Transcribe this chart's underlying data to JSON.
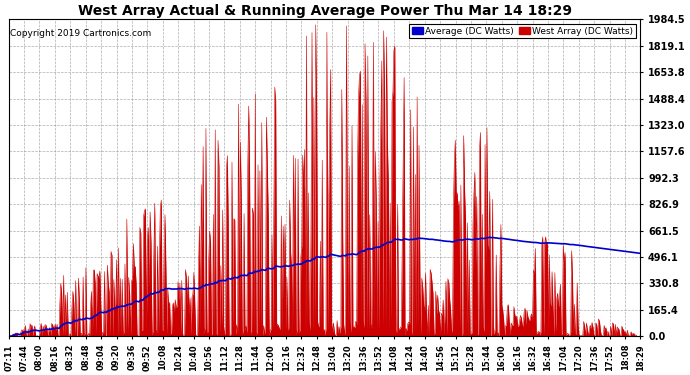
{
  "title": "West Array Actual & Running Average Power Thu Mar 14 18:29",
  "copyright": "Copyright 2019 Cartronics.com",
  "legend_avg": "Average (DC Watts)",
  "legend_west": "West Array (DC Watts)",
  "yticks": [
    0.0,
    165.4,
    330.8,
    496.1,
    661.5,
    826.9,
    992.3,
    1157.6,
    1323.0,
    1488.4,
    1653.8,
    1819.1,
    1984.5
  ],
  "ymax": 1984.5,
  "ymin": 0.0,
  "bg_color": "#ffffff",
  "grid_color": "#aaaaaa",
  "west_array_color": "#cc0000",
  "avg_color": "#0000cc",
  "xtick_labels": [
    "07:11",
    "07:44",
    "08:00",
    "08:16",
    "08:32",
    "08:48",
    "09:04",
    "09:20",
    "09:36",
    "09:52",
    "10:08",
    "10:24",
    "10:40",
    "10:56",
    "11:12",
    "11:28",
    "11:44",
    "12:00",
    "12:16",
    "12:32",
    "12:48",
    "13:04",
    "13:20",
    "13:36",
    "13:52",
    "14:08",
    "14:24",
    "14:40",
    "14:56",
    "15:12",
    "15:28",
    "15:44",
    "16:00",
    "16:16",
    "16:32",
    "16:48",
    "17:04",
    "17:20",
    "17:36",
    "17:52",
    "18:08",
    "18:29"
  ],
  "figsize": [
    6.9,
    3.75
  ],
  "dpi": 100
}
